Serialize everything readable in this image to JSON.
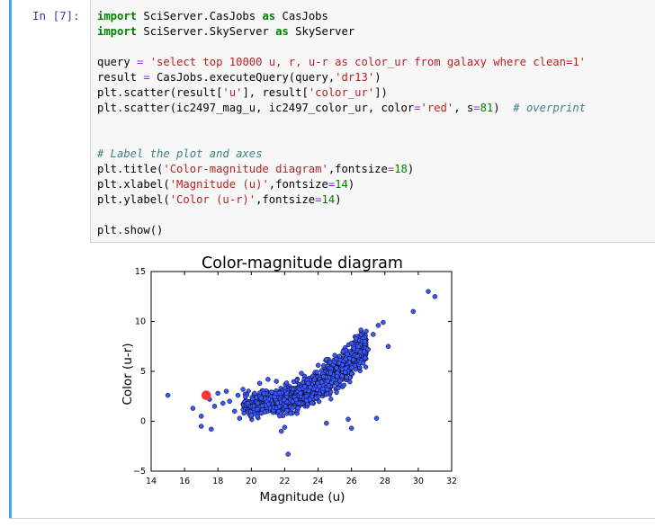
{
  "cell": {
    "prompt": "In [7]:",
    "lines": [
      [
        {
          "t": "import",
          "c": "kw"
        },
        {
          "t": " SciServer.CasJobs "
        },
        {
          "t": "as",
          "c": "kw"
        },
        {
          "t": " CasJobs"
        }
      ],
      [
        {
          "t": "import",
          "c": "kw"
        },
        {
          "t": " SciServer.SkyServer "
        },
        {
          "t": "as",
          "c": "kw"
        },
        {
          "t": " SkyServer"
        }
      ],
      [],
      [
        {
          "t": "query "
        },
        {
          "t": "=",
          "c": "op"
        },
        {
          "t": " "
        },
        {
          "t": "'select top 10000 u, r, u-r as color_ur from galaxy where clean=1'",
          "c": "str"
        }
      ],
      [
        {
          "t": "result "
        },
        {
          "t": "=",
          "c": "op"
        },
        {
          "t": " CasJobs.executeQuery(query,"
        },
        {
          "t": "'dr13'",
          "c": "str"
        },
        {
          "t": ")"
        }
      ],
      [
        {
          "t": "plt.scatter(result["
        },
        {
          "t": "'u'",
          "c": "str"
        },
        {
          "t": "], result["
        },
        {
          "t": "'color_ur'",
          "c": "str"
        },
        {
          "t": "])"
        }
      ],
      [
        {
          "t": "plt.scatter(ic2497_mag_u, ic2497_color_ur, color"
        },
        {
          "t": "=",
          "c": "op"
        },
        {
          "t": "'red'",
          "c": "str"
        },
        {
          "t": ", s"
        },
        {
          "t": "=",
          "c": "op"
        },
        {
          "t": "81",
          "c": "num"
        },
        {
          "t": ")  "
        },
        {
          "t": "# overprint",
          "c": "cm"
        }
      ],
      [],
      [],
      [
        {
          "t": "# Label the plot and axes",
          "c": "cm"
        }
      ],
      [
        {
          "t": "plt.title("
        },
        {
          "t": "'Color-magnitude diagram'",
          "c": "str"
        },
        {
          "t": ",fontsize"
        },
        {
          "t": "=",
          "c": "op"
        },
        {
          "t": "18",
          "c": "num"
        },
        {
          "t": ")"
        }
      ],
      [
        {
          "t": "plt.xlabel("
        },
        {
          "t": "'Magnitude (u)'",
          "c": "str"
        },
        {
          "t": ",fontsize"
        },
        {
          "t": "=",
          "c": "op"
        },
        {
          "t": "14",
          "c": "num"
        },
        {
          "t": ")"
        }
      ],
      [
        {
          "t": "plt.ylabel("
        },
        {
          "t": "'Color (u-r)'",
          "c": "str"
        },
        {
          "t": ",fontsize"
        },
        {
          "t": "=",
          "c": "op"
        },
        {
          "t": "14",
          "c": "num"
        },
        {
          "t": ")"
        }
      ],
      [],
      [
        {
          "t": "plt.show()"
        }
      ]
    ]
  },
  "chart_data": {
    "type": "scatter",
    "title": "Color-magnitude diagram",
    "xlabel": "Magnitude (u)",
    "ylabel": "Color (u-r)",
    "xlim": [
      14,
      32
    ],
    "ylim": [
      -5,
      15
    ],
    "xticks": [
      "14",
      "16",
      "18",
      "20",
      "22",
      "24",
      "26",
      "28",
      "30",
      "32"
    ],
    "yticks": [
      "−5",
      "0",
      "5",
      "10",
      "15"
    ],
    "grid": false,
    "legend": "none",
    "colors": {
      "main": "#3a57ff",
      "edge": "#000000",
      "highlight": "#ff3333"
    },
    "series": [
      {
        "points": [
          [
            15.0,
            2.6
          ],
          [
            16.5,
            1.3
          ],
          [
            17.0,
            0.5
          ],
          [
            17.0,
            -0.5
          ],
          [
            17.6,
            -0.8
          ],
          [
            17.5,
            2.2
          ],
          [
            17.8,
            1.5
          ],
          [
            18.0,
            2.8
          ],
          [
            18.3,
            1.8
          ],
          [
            18.5,
            3.0
          ],
          [
            18.7,
            2.0
          ],
          [
            19.0,
            1.0
          ],
          [
            19.2,
            2.6
          ],
          [
            19.3,
            0.3
          ],
          [
            19.5,
            3.2
          ],
          [
            19.8,
            1.8
          ],
          [
            20.0,
            0.6
          ],
          [
            20.2,
            2.8
          ],
          [
            20.5,
            3.8
          ],
          [
            21.0,
            4.2
          ],
          [
            21.5,
            4.0
          ],
          [
            21.8,
            -1.0
          ],
          [
            22.0,
            -0.6
          ],
          [
            22.2,
            -3.3
          ],
          [
            23.0,
            4.8
          ],
          [
            24.0,
            5.6
          ],
          [
            24.5,
            6.2
          ],
          [
            25.0,
            6.6
          ],
          [
            25.5,
            7.0
          ],
          [
            26.0,
            7.8
          ],
          [
            26.4,
            7.5
          ],
          [
            26.8,
            8.0
          ],
          [
            27.0,
            7.2
          ],
          [
            27.3,
            8.7
          ],
          [
            27.6,
            9.6
          ],
          [
            27.9,
            9.9
          ],
          [
            28.2,
            7.5
          ],
          [
            29.7,
            11.0
          ],
          [
            30.6,
            13.0
          ],
          [
            31.0,
            12.5
          ],
          [
            26.0,
            -0.7
          ],
          [
            27.5,
            0.3
          ],
          [
            25.8,
            0.2
          ],
          [
            24.5,
            -0.2
          ],
          [
            20.6,
            0.8
          ],
          [
            23.4,
            3.8
          ]
        ]
      },
      {
        "points": [
          [
            17.3,
            2.6
          ]
        ]
      }
    ]
  }
}
